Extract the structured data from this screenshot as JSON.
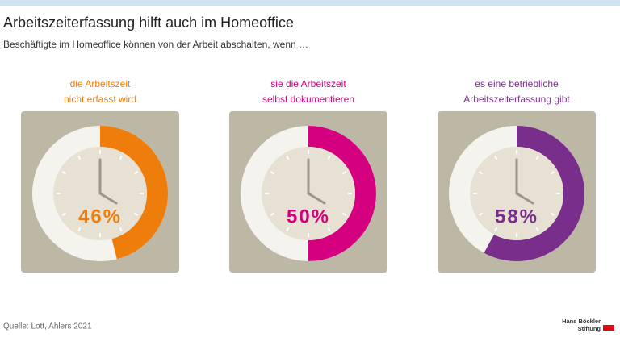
{
  "chart_data": {
    "type": "donut",
    "title": "Arbeitszeiterfassung hilft auch im Homeoffice",
    "subtitle": "Beschäftigte im Homeoffice können von der Arbeit abschalten, wenn  …",
    "categories": [
      [
        "die Arbeitszeit",
        "nicht erfasst wird"
      ],
      [
        "sie die Arbeitszeit",
        "selbst dokumentieren"
      ],
      [
        "es eine betriebliche",
        "Arbeitszeiterfassung gibt"
      ]
    ],
    "values": [
      46,
      50,
      58
    ],
    "value_labels": [
      "46%",
      "50%",
      "58%"
    ],
    "colors": [
      "#ef7d0b",
      "#d5007f",
      "#7a2e8c"
    ],
    "source": "Quelle: Lott, Ahlers 2021",
    "logo": [
      "Hans Böckler",
      "Stiftung"
    ]
  }
}
